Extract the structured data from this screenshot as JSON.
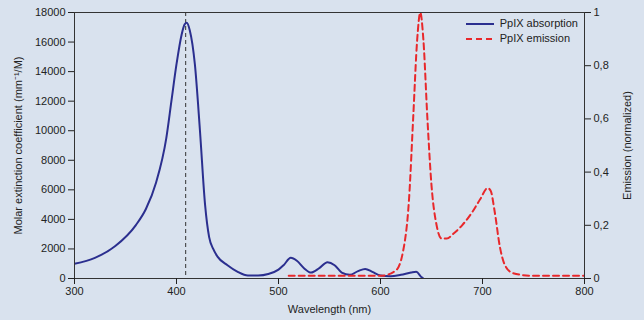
{
  "chart_data": {
    "type": "line",
    "xlabel": "Wavelength (nm)",
    "ylabel": "Molar extinction coefficient (mm⁻¹/M)",
    "y2label": "Emission (normalized)",
    "xlim": [
      300,
      800
    ],
    "xticks": [
      300,
      400,
      500,
      600,
      700,
      800
    ],
    "ylim": [
      0,
      18000
    ],
    "yticks": [
      0,
      2000,
      4000,
      6000,
      8000,
      10000,
      12000,
      14000,
      16000,
      18000
    ],
    "y2lim": [
      0,
      1
    ],
    "y2ticks": [
      0,
      {
        "value": 0.2,
        "label": "0,2"
      },
      {
        "value": 0.4,
        "label": "0,4"
      },
      {
        "value": 0.6,
        "label": "0,6"
      },
      {
        "value": 0.8,
        "label": "0,8"
      },
      1
    ],
    "grid": false,
    "legend": "top-right",
    "reference_line_x": 409,
    "series": [
      {
        "name": "PpIX absorption",
        "color": "#2b2f8f",
        "line_style": "solid",
        "x": [
          300,
          320,
          340,
          360,
          370,
          380,
          390,
          395,
          400,
          405,
          408,
          410,
          413,
          418,
          423,
          428,
          432,
          436,
          440,
          450,
          460,
          470,
          480,
          490,
          500,
          505,
          512,
          518,
          525,
          532,
          540,
          548,
          555,
          562,
          570,
          578,
          585,
          592,
          600,
          610,
          620,
          630,
          635,
          640,
          642
        ],
        "values": [
          1000,
          1400,
          2200,
          3600,
          4700,
          6500,
          9500,
          12000,
          14500,
          16500,
          17200,
          17300,
          16800,
          14500,
          10000,
          5000,
          2800,
          2000,
          1500,
          900,
          450,
          200,
          200,
          300,
          600,
          900,
          1400,
          1200,
          700,
          400,
          700,
          1100,
          900,
          400,
          250,
          500,
          650,
          450,
          200,
          150,
          250,
          400,
          450,
          100,
          0
        ]
      },
      {
        "name": "PpIX emission",
        "color": "#e8282b",
        "line_style": "dashed",
        "axis": "y2",
        "x": [
          510,
          600,
          615,
          622,
          628,
          632,
          636,
          639,
          642,
          646,
          650,
          655,
          660,
          665,
          672,
          680,
          690,
          698,
          705,
          708,
          712,
          717,
          722,
          730,
          750,
          800
        ],
        "values": [
          0.01,
          0.01,
          0.03,
          0.1,
          0.3,
          0.6,
          0.9,
          1.0,
          0.9,
          0.6,
          0.35,
          0.2,
          0.15,
          0.15,
          0.17,
          0.2,
          0.25,
          0.3,
          0.34,
          0.33,
          0.25,
          0.12,
          0.05,
          0.02,
          0.01,
          0.01
        ]
      }
    ]
  }
}
